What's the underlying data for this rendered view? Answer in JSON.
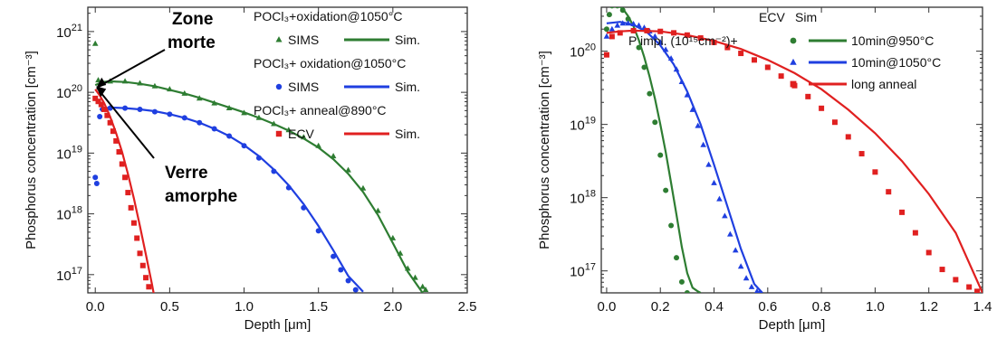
{
  "chart_data": [
    {
      "type": "line",
      "xlabel": "Depth [μm]",
      "ylabel": "Phosphorus concentration [cm⁻³]",
      "xlim": [
        -0.05,
        2.5
      ],
      "ylim_log10": [
        16.7,
        21.4
      ],
      "yscale": "log",
      "xticks": [
        "0.0",
        "0.5",
        "1.0",
        "1.5",
        "2.0",
        "2.5"
      ],
      "yticks": [
        "10^17",
        "10^18",
        "10^19",
        "10^20",
        "10^21"
      ],
      "legend": [
        {
          "title": "POCl₃+oxidation@1050°C",
          "marker_label": "SIMS",
          "line_label": "Sim.",
          "color": "#2e7d32",
          "marker": "triangle"
        },
        {
          "title": "POCl₃+ oxidation@1050°C",
          "marker_label": "SIMS",
          "line_label": "Sim.",
          "color": "#1f3fe0",
          "marker": "circle"
        },
        {
          "title": "POCl₃+ anneal@890°C",
          "marker_label": "ECV",
          "line_label": "Sim.",
          "color": "#e02020",
          "marker": "square"
        }
      ],
      "annotations": [
        {
          "text": [
            "Zone",
            "morte"
          ]
        },
        {
          "text": [
            "Verre",
            "amorphe"
          ]
        }
      ],
      "series": [
        {
          "color": "#2e7d32",
          "kind": "markers",
          "marker": "triangle",
          "x": [
            0.0,
            0.02,
            0.05,
            0.1,
            0.2,
            0.3,
            0.4,
            0.5,
            0.6,
            0.7,
            0.8,
            0.9,
            1.0,
            1.1,
            1.2,
            1.3,
            1.4,
            1.5,
            1.6,
            1.7,
            1.8,
            1.9,
            2.0,
            2.05,
            2.1,
            2.15,
            2.2,
            2.22
          ],
          "log10y": [
            20.8,
            20.2,
            20.15,
            20.18,
            20.18,
            20.15,
            20.1,
            20.05,
            19.98,
            19.9,
            19.82,
            19.74,
            19.66,
            19.58,
            19.48,
            19.38,
            19.26,
            19.12,
            18.95,
            18.72,
            18.42,
            18.05,
            17.6,
            17.35,
            17.1,
            16.95,
            16.8,
            16.75
          ]
        },
        {
          "color": "#2e7d32",
          "kind": "line",
          "x": [
            0.0,
            0.05,
            0.1,
            0.2,
            0.3,
            0.4,
            0.5,
            0.6,
            0.7,
            0.8,
            0.9,
            1.0,
            1.1,
            1.2,
            1.3,
            1.4,
            1.5,
            1.6,
            1.7,
            1.8,
            1.9,
            2.0,
            2.1,
            2.2
          ],
          "log10y": [
            20.12,
            20.17,
            20.18,
            20.17,
            20.14,
            20.1,
            20.04,
            19.98,
            19.91,
            19.83,
            19.75,
            19.67,
            19.58,
            19.48,
            19.37,
            19.24,
            19.09,
            18.9,
            18.66,
            18.36,
            17.98,
            17.52,
            17.05,
            16.7
          ]
        },
        {
          "color": "#1f3fe0",
          "kind": "markers",
          "marker": "circle",
          "x": [
            0.0,
            0.01,
            0.03,
            0.05,
            0.1,
            0.2,
            0.3,
            0.4,
            0.5,
            0.6,
            0.7,
            0.8,
            0.9,
            1.0,
            1.1,
            1.2,
            1.3,
            1.4,
            1.5,
            1.6,
            1.65,
            1.7,
            1.75
          ],
          "log10y": [
            18.6,
            18.5,
            19.6,
            19.72,
            19.74,
            19.74,
            19.72,
            19.68,
            19.64,
            19.58,
            19.5,
            19.4,
            19.28,
            19.12,
            18.92,
            18.7,
            18.43,
            18.1,
            17.72,
            17.3,
            17.08,
            16.9,
            16.75
          ]
        },
        {
          "color": "#1f3fe0",
          "kind": "line",
          "x": [
            0.03,
            0.1,
            0.2,
            0.3,
            0.4,
            0.5,
            0.6,
            0.7,
            0.8,
            0.9,
            1.0,
            1.1,
            1.2,
            1.3,
            1.4,
            1.5,
            1.6,
            1.7,
            1.8
          ],
          "log10y": [
            19.72,
            19.75,
            19.74,
            19.72,
            19.69,
            19.64,
            19.58,
            19.5,
            19.4,
            19.28,
            19.13,
            18.95,
            18.73,
            18.47,
            18.16,
            17.8,
            17.4,
            16.98,
            16.72
          ]
        },
        {
          "color": "#e02020",
          "kind": "markers",
          "marker": "square",
          "x": [
            0.0,
            0.02,
            0.04,
            0.06,
            0.08,
            0.1,
            0.12,
            0.14,
            0.16,
            0.18,
            0.2,
            0.22,
            0.24,
            0.26,
            0.28,
            0.3,
            0.32,
            0.34,
            0.36
          ],
          "log10y": [
            19.9,
            19.85,
            19.8,
            19.72,
            19.62,
            19.5,
            19.36,
            19.2,
            19.02,
            18.82,
            18.6,
            18.35,
            18.1,
            17.85,
            17.6,
            17.35,
            17.15,
            16.95,
            16.8
          ]
        },
        {
          "color": "#e02020",
          "kind": "line",
          "x": [
            0.0,
            0.03,
            0.06,
            0.1,
            0.14,
            0.18,
            0.22,
            0.26,
            0.3,
            0.34,
            0.38,
            0.4
          ],
          "log10y": [
            20.05,
            19.95,
            19.82,
            19.6,
            19.33,
            19.02,
            18.65,
            18.25,
            17.8,
            17.33,
            16.85,
            16.6
          ]
        }
      ]
    },
    {
      "type": "line",
      "xlabel": "Depth [μm]",
      "ylabel": "Phosphorus concentration [cm⁻³]",
      "xlim": [
        -0.02,
        1.4
      ],
      "ylim_log10": [
        16.7,
        20.6
      ],
      "yscale": "log",
      "xticks": [
        "0.0",
        "0.2",
        "0.4",
        "0.6",
        "0.8",
        "1.0",
        "1.2",
        "1.4"
      ],
      "yticks": [
        "10^17",
        "10^18",
        "10^19",
        "10^20"
      ],
      "legend_header": [
        "ECV",
        "Sim"
      ],
      "legend_prefix": "P impl. (10¹⁵cm⁻²)+",
      "legend": [
        {
          "label": "10min@950°C",
          "color": "#2e7d32",
          "marker": "circle"
        },
        {
          "label": "10min@1050°C",
          "color": "#1f3fe0",
          "marker": "triangle"
        },
        {
          "label": "long anneal",
          "color": "#e02020",
          "marker": "square"
        }
      ],
      "series": [
        {
          "color": "#2e7d32",
          "kind": "markers",
          "marker": "circle",
          "x": [
            0.0,
            0.01,
            0.02,
            0.04,
            0.06,
            0.08,
            0.1,
            0.12,
            0.14,
            0.16,
            0.18,
            0.2,
            0.22,
            0.24,
            0.26,
            0.28,
            0.3
          ],
          "log10y": [
            20.3,
            20.5,
            20.62,
            20.62,
            20.56,
            20.44,
            20.28,
            20.05,
            19.78,
            19.42,
            19.03,
            18.58,
            18.1,
            17.62,
            17.18,
            16.85,
            16.7
          ]
        },
        {
          "color": "#2e7d32",
          "kind": "line",
          "x": [
            0.0,
            0.02,
            0.04,
            0.06,
            0.08,
            0.1,
            0.12,
            0.14,
            0.16,
            0.18,
            0.2,
            0.22,
            0.24,
            0.26,
            0.28,
            0.3,
            0.32,
            0.34,
            0.35
          ],
          "log10y": [
            20.62,
            20.64,
            20.63,
            20.58,
            20.48,
            20.34,
            20.15,
            19.92,
            19.65,
            19.35,
            19.0,
            18.62,
            18.2,
            17.77,
            17.33,
            16.97,
            16.77,
            16.72,
            16.7
          ]
        },
        {
          "color": "#1f3fe0",
          "kind": "markers",
          "marker": "triangle",
          "x": [
            0.0,
            0.02,
            0.04,
            0.06,
            0.08,
            0.1,
            0.12,
            0.14,
            0.16,
            0.18,
            0.2,
            0.22,
            0.24,
            0.26,
            0.28,
            0.3,
            0.32,
            0.34,
            0.36,
            0.38,
            0.4,
            0.42,
            0.44,
            0.46,
            0.48,
            0.5,
            0.52,
            0.54,
            0.56,
            0.57
          ],
          "log10y": [
            20.2,
            20.3,
            20.35,
            20.38,
            20.38,
            20.37,
            20.35,
            20.32,
            20.27,
            20.2,
            20.12,
            20.02,
            19.9,
            19.75,
            19.58,
            19.4,
            19.2,
            18.98,
            18.72,
            18.45,
            18.2,
            17.98,
            17.75,
            17.5,
            17.28,
            17.06,
            16.9,
            16.78,
            16.72,
            16.7
          ]
        },
        {
          "color": "#1f3fe0",
          "kind": "line",
          "x": [
            0.0,
            0.05,
            0.1,
            0.15,
            0.2,
            0.25,
            0.3,
            0.35,
            0.4,
            0.45,
            0.5,
            0.55,
            0.58
          ],
          "log10y": [
            20.38,
            20.4,
            20.36,
            20.26,
            20.08,
            19.82,
            19.45,
            19.0,
            18.45,
            17.88,
            17.3,
            16.82,
            16.7
          ]
        },
        {
          "color": "#e02020",
          "kind": "markers",
          "marker": "square",
          "x": [
            0.0,
            0.02,
            0.05,
            0.1,
            0.15,
            0.2,
            0.25,
            0.3,
            0.35,
            0.4,
            0.45,
            0.5,
            0.55,
            0.6,
            0.65,
            0.7,
            0.75,
            0.8,
            0.85,
            0.9,
            0.95,
            1.0,
            1.05,
            1.1,
            1.15,
            1.2,
            1.25,
            1.3,
            1.35,
            1.38
          ],
          "log10y": [
            19.95,
            20.2,
            20.25,
            20.28,
            20.28,
            20.27,
            20.25,
            20.22,
            20.18,
            20.12,
            20.05,
            19.97,
            19.88,
            19.78,
            19.66,
            19.53,
            19.38,
            19.22,
            19.03,
            18.83,
            18.6,
            18.35,
            18.08,
            17.8,
            17.52,
            17.25,
            17.02,
            16.88,
            16.78,
            16.72
          ]
        },
        {
          "color": "#e02020",
          "kind": "line",
          "x": [
            0.0,
            0.05,
            0.1,
            0.2,
            0.3,
            0.4,
            0.5,
            0.6,
            0.7,
            0.8,
            0.9,
            1.0,
            1.1,
            1.2,
            1.3,
            1.4
          ],
          "log10y": [
            20.25,
            20.27,
            20.28,
            20.27,
            20.22,
            20.14,
            20.03,
            19.88,
            19.7,
            19.48,
            19.2,
            18.88,
            18.5,
            18.05,
            17.52,
            16.7
          ]
        }
      ]
    }
  ]
}
